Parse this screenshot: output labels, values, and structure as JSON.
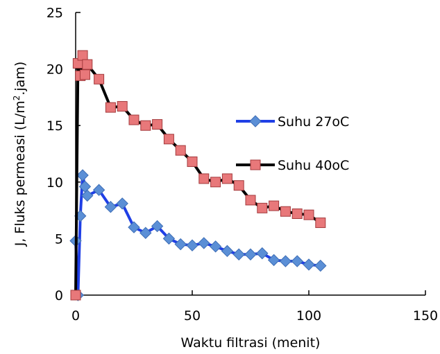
{
  "chart_data": {
    "type": "line",
    "title": "",
    "xlabel": "Waktu filtrasi (menit)",
    "ylabel_main": "J, Fluks permeasi (L/m",
    "ylabel_sup": "2",
    "ylabel_end": ".jam)",
    "xlim": [
      0,
      150
    ],
    "ylim": [
      0,
      25
    ],
    "x_ticks": [
      0,
      50,
      100,
      150
    ],
    "y_ticks": [
      0,
      5,
      10,
      15,
      20,
      25
    ],
    "grid": false,
    "legend_position": "right",
    "series": [
      {
        "name": "Suhu 27oC",
        "line_color": "#1f3fe6",
        "marker": "diamond",
        "marker_color": "#5b8fd6",
        "x": [
          0,
          1,
          2,
          3,
          4,
          5,
          10,
          15,
          20,
          25,
          30,
          35,
          40,
          45,
          50,
          55,
          60,
          65,
          70,
          75,
          80,
          85,
          90,
          95,
          100,
          105
        ],
        "y": [
          4.8,
          0,
          7.0,
          10.6,
          9.6,
          8.8,
          9.3,
          7.8,
          8.1,
          6.0,
          5.5,
          6.1,
          5.0,
          4.5,
          4.4,
          4.6,
          4.3,
          3.9,
          3.6,
          3.6,
          3.7,
          3.1,
          3.0,
          3.0,
          2.7,
          2.6
        ]
      },
      {
        "name": "Suhu 40oC",
        "line_color": "#000000",
        "marker": "square",
        "marker_color": "#e8787a",
        "x": [
          0,
          1,
          2,
          3,
          4,
          5,
          10,
          15,
          20,
          25,
          30,
          35,
          40,
          45,
          50,
          55,
          60,
          65,
          70,
          75,
          80,
          85,
          90,
          95,
          100,
          105
        ],
        "y": [
          0,
          20.5,
          19.4,
          21.2,
          19.5,
          20.4,
          19.1,
          16.6,
          16.7,
          15.5,
          15.0,
          15.1,
          13.8,
          12.8,
          11.8,
          10.3,
          10.0,
          10.3,
          9.7,
          8.4,
          7.7,
          7.9,
          7.4,
          7.2,
          7.1,
          6.4
        ]
      }
    ]
  }
}
